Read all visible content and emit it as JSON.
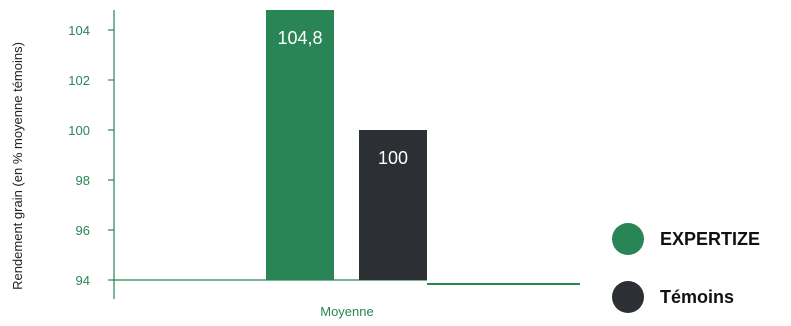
{
  "chart_data": {
    "type": "bar",
    "categories": [
      "Moyenne"
    ],
    "series": [
      {
        "name": "EXPERTIZE",
        "values": [
          104.8
        ],
        "label": "104,8",
        "color": "#2a8556"
      },
      {
        "name": "Témoins",
        "values": [
          100
        ],
        "label": "100",
        "color": "#2c2f33"
      }
    ],
    "title": "",
    "xlabel": "",
    "ylabel": "Rendement grain (en % moyenne témoins)",
    "ylim": [
      94,
      104.8
    ],
    "yticks": [
      94,
      96,
      98,
      100,
      102,
      104
    ],
    "grid": false,
    "legend_position": "right",
    "colors": {
      "axis": "#2a8556",
      "tick_text": "#2a8556",
      "label_text": "#222222",
      "data_label_text": "#ffffff"
    }
  }
}
